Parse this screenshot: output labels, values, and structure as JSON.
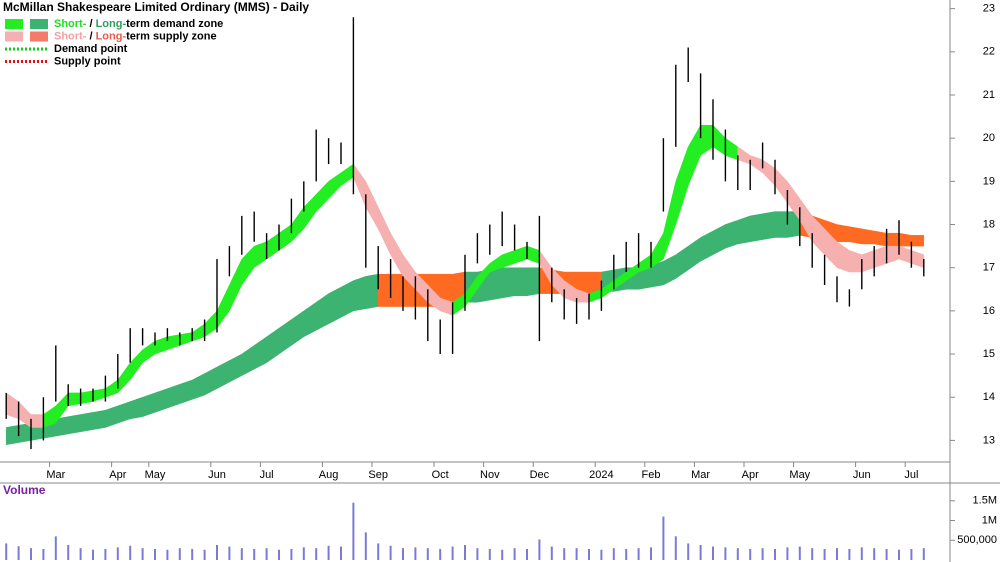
{
  "chart_data": [
    {
      "type": "range",
      "title": "McMillan Shakespeare Limited Ordinary (MMS) - Daily",
      "legend": [
        {
          "swatches": [
            "#22ee22",
            "#3cb371"
          ],
          "parts": [
            {
              "text": "Short-",
              "color": "#22dd22"
            },
            {
              "text": " / ",
              "color": "#000000"
            },
            {
              "text": "Long-",
              "color": "#2e9e5e"
            },
            {
              "text": "term demand zone",
              "color": "#000000"
            }
          ]
        },
        {
          "swatches": [
            "#f6b0b0",
            "#f47a6a"
          ],
          "parts": [
            {
              "text": "Short-",
              "color": "#f4a0a0"
            },
            {
              "text": " / ",
              "color": "#000000"
            },
            {
              "text": "Long-",
              "color": "#ee5a4a"
            },
            {
              "text": "term supply zone",
              "color": "#000000"
            }
          ]
        },
        {
          "line": "#11cc11",
          "parts": [
            {
              "text": "Demand point",
              "color": "#000000"
            }
          ]
        },
        {
          "line": "#dd1111",
          "parts": [
            {
              "text": "Supply point",
              "color": "#000000"
            }
          ]
        }
      ],
      "categories": [
        null,
        null,
        null,
        null,
        "Mar",
        null,
        null,
        null,
        null,
        "Apr",
        null,
        null,
        "May",
        null,
        null,
        null,
        null,
        "Jun",
        null,
        null,
        null,
        "Jul",
        null,
        null,
        null,
        null,
        "Aug",
        null,
        null,
        null,
        "Sep",
        null,
        null,
        null,
        null,
        "Oct",
        null,
        null,
        null,
        "Nov",
        null,
        null,
        null,
        "Dec",
        null,
        null,
        null,
        null,
        "2024",
        null,
        null,
        null,
        "Feb",
        null,
        null,
        null,
        "Mar",
        null,
        null,
        null,
        "Apr",
        null,
        null,
        null,
        "May",
        null,
        null,
        null,
        null,
        "Jun",
        null,
        null,
        null,
        "Jul",
        null
      ],
      "high": [
        14.1,
        13.9,
        13.5,
        14.0,
        15.2,
        14.3,
        14.2,
        14.2,
        14.5,
        15.0,
        15.6,
        15.6,
        15.5,
        15.6,
        15.5,
        15.6,
        15.8,
        17.2,
        17.5,
        18.2,
        18.3,
        17.8,
        18.0,
        18.6,
        19.0,
        20.2,
        20.0,
        19.9,
        22.8,
        18.7,
        17.5,
        17.2,
        16.8,
        16.8,
        16.5,
        15.8,
        16.2,
        17.3,
        17.8,
        18.0,
        18.3,
        18.0,
        17.6,
        18.2,
        17.0,
        16.5,
        16.3,
        16.4,
        16.7,
        17.3,
        17.6,
        17.8,
        17.6,
        20.0,
        21.7,
        22.1,
        21.5,
        20.9,
        20.2,
        19.6,
        19.5,
        19.9,
        19.5,
        18.8,
        18.4,
        17.8,
        17.3,
        16.8,
        16.5,
        17.2,
        17.5,
        17.9,
        18.1,
        17.6,
        17.2
      ],
      "low": [
        13.5,
        13.1,
        12.8,
        13.0,
        13.9,
        13.8,
        13.8,
        13.9,
        13.9,
        14.2,
        14.8,
        15.2,
        15.2,
        15.3,
        15.2,
        15.3,
        15.3,
        15.5,
        16.8,
        17.3,
        17.6,
        17.2,
        17.4,
        17.8,
        18.3,
        19.0,
        19.4,
        19.4,
        18.7,
        17.0,
        16.5,
        16.3,
        16.0,
        15.8,
        15.3,
        15.0,
        15.0,
        16.0,
        17.1,
        17.3,
        17.5,
        17.4,
        17.2,
        15.3,
        16.2,
        15.8,
        15.7,
        15.8,
        16.0,
        16.5,
        16.9,
        17.0,
        17.0,
        18.3,
        19.8,
        21.3,
        20.0,
        19.5,
        19.0,
        18.8,
        18.8,
        19.3,
        18.7,
        18.0,
        17.5,
        17.0,
        16.6,
        16.2,
        16.1,
        16.5,
        16.8,
        17.1,
        17.3,
        17.0,
        16.8
      ],
      "bar_color": "#000000",
      "zones": [
        {
          "color": "#3cb371",
          "upper": [
            13.3,
            13.35,
            13.4,
            13.45,
            13.5,
            13.55,
            13.6,
            13.65,
            13.7,
            13.8,
            13.9,
            14.0,
            14.1,
            14.2,
            14.3,
            14.4,
            14.55,
            14.7,
            14.85,
            15.0,
            15.2,
            15.4,
            15.6,
            15.8,
            16.0,
            16.2,
            16.4,
            16.55,
            16.7,
            16.8,
            16.85,
            null,
            null,
            null,
            null,
            null,
            null,
            16.9,
            16.9,
            16.95,
            17.0,
            17.0,
            17.0,
            17.0,
            null,
            null,
            null,
            null,
            16.9,
            16.95,
            17.0,
            17.0,
            17.05,
            17.15,
            17.3,
            17.5,
            17.7,
            17.85,
            18.0,
            18.1,
            18.2,
            18.25,
            18.3,
            18.3,
            18.3,
            null,
            null,
            null,
            null,
            null,
            null,
            null,
            null,
            null,
            null
          ],
          "lower": [
            12.9,
            12.95,
            13.0,
            13.05,
            13.1,
            13.15,
            13.2,
            13.25,
            13.3,
            13.4,
            13.5,
            13.55,
            13.65,
            13.75,
            13.85,
            13.95,
            14.05,
            14.2,
            14.35,
            14.5,
            14.65,
            14.8,
            15.0,
            15.2,
            15.4,
            15.55,
            15.7,
            15.85,
            16.0,
            16.05,
            16.1,
            null,
            null,
            null,
            null,
            null,
            null,
            16.2,
            16.2,
            16.25,
            16.3,
            16.35,
            16.35,
            16.4,
            null,
            null,
            null,
            null,
            16.45,
            16.45,
            16.5,
            16.5,
            16.55,
            16.6,
            16.75,
            16.95,
            17.15,
            17.3,
            17.45,
            17.55,
            17.6,
            17.65,
            17.7,
            17.7,
            17.75,
            null,
            null,
            null,
            null,
            null,
            null,
            null,
            null,
            null,
            null
          ]
        },
        {
          "color": "#ff6a22",
          "upper": [
            null,
            null,
            null,
            null,
            null,
            null,
            null,
            null,
            null,
            null,
            null,
            null,
            null,
            null,
            null,
            null,
            null,
            null,
            null,
            null,
            null,
            null,
            null,
            null,
            null,
            null,
            null,
            null,
            null,
            null,
            16.85,
            16.85,
            16.85,
            16.85,
            16.85,
            16.85,
            16.85,
            16.9,
            null,
            null,
            null,
            null,
            null,
            17.0,
            16.95,
            16.9,
            16.9,
            16.9,
            16.9,
            null,
            null,
            null,
            null,
            null,
            null,
            null,
            null,
            null,
            null,
            null,
            null,
            null,
            null,
            null,
            18.3,
            18.2,
            18.1,
            18.0,
            17.95,
            17.9,
            17.85,
            17.8,
            17.8,
            17.75,
            17.75
          ],
          "lower": [
            null,
            null,
            null,
            null,
            null,
            null,
            null,
            null,
            null,
            null,
            null,
            null,
            null,
            null,
            null,
            null,
            null,
            null,
            null,
            null,
            null,
            null,
            null,
            null,
            null,
            null,
            null,
            null,
            null,
            null,
            16.1,
            16.1,
            16.1,
            16.1,
            16.1,
            16.1,
            16.1,
            16.2,
            null,
            null,
            null,
            null,
            null,
            16.4,
            16.4,
            16.4,
            16.4,
            16.4,
            16.45,
            null,
            null,
            null,
            null,
            null,
            null,
            null,
            null,
            null,
            null,
            null,
            null,
            null,
            null,
            null,
            17.75,
            17.7,
            17.65,
            17.6,
            17.6,
            17.55,
            17.55,
            17.5,
            17.5,
            17.5,
            17.5
          ]
        },
        {
          "color": "#22ee22",
          "upper": [
            null,
            null,
            null,
            13.6,
            13.8,
            14.1,
            14.1,
            14.15,
            14.2,
            14.4,
            14.8,
            15.1,
            15.3,
            15.4,
            15.45,
            15.5,
            15.7,
            16.0,
            16.6,
            17.2,
            17.5,
            17.6,
            17.8,
            18.0,
            18.4,
            18.7,
            19.0,
            19.2,
            19.4,
            null,
            null,
            null,
            null,
            null,
            null,
            null,
            16.2,
            16.4,
            16.8,
            17.1,
            17.3,
            17.4,
            17.5,
            17.4,
            null,
            null,
            null,
            16.4,
            16.5,
            16.7,
            16.9,
            17.1,
            17.3,
            17.8,
            19.0,
            19.8,
            20.3,
            20.3,
            20.0,
            19.8,
            null,
            null,
            null,
            null,
            null,
            null,
            null,
            null,
            null,
            null,
            null,
            null,
            null,
            null,
            null
          ],
          "lower": [
            null,
            null,
            null,
            13.3,
            13.4,
            13.8,
            13.85,
            13.9,
            14.0,
            14.1,
            14.4,
            14.8,
            15.0,
            15.1,
            15.2,
            15.3,
            15.4,
            15.6,
            16.0,
            16.6,
            17.0,
            17.2,
            17.4,
            17.6,
            17.9,
            18.3,
            18.6,
            18.9,
            19.1,
            null,
            null,
            null,
            null,
            null,
            null,
            null,
            15.9,
            16.1,
            16.5,
            16.9,
            17.0,
            17.1,
            17.2,
            17.1,
            null,
            null,
            null,
            16.2,
            16.3,
            16.5,
            16.7,
            16.9,
            17.0,
            17.2,
            18.0,
            18.9,
            19.6,
            19.8,
            19.6,
            19.5,
            null,
            null,
            null,
            null,
            null,
            null,
            null,
            null,
            null,
            null,
            null,
            null,
            null,
            null,
            null
          ]
        },
        {
          "color": "#f6b0b0",
          "upper": [
            14.1,
            13.9,
            13.6,
            13.6,
            null,
            null,
            null,
            null,
            null,
            null,
            null,
            null,
            null,
            null,
            null,
            null,
            null,
            null,
            null,
            null,
            null,
            null,
            null,
            null,
            null,
            null,
            null,
            null,
            19.4,
            19.0,
            18.4,
            17.8,
            17.3,
            16.9,
            16.6,
            16.3,
            16.2,
            null,
            null,
            null,
            null,
            null,
            null,
            17.4,
            17.0,
            16.7,
            16.5,
            16.4,
            null,
            null,
            null,
            null,
            null,
            null,
            null,
            null,
            null,
            null,
            null,
            19.8,
            19.6,
            19.5,
            19.3,
            19.0,
            18.6,
            18.2,
            17.9,
            17.6,
            17.4,
            17.3,
            17.4,
            17.5,
            17.5,
            17.4,
            17.3
          ],
          "lower": [
            13.6,
            13.5,
            13.3,
            13.3,
            null,
            null,
            null,
            null,
            null,
            null,
            null,
            null,
            null,
            null,
            null,
            null,
            null,
            null,
            null,
            null,
            null,
            null,
            null,
            null,
            null,
            null,
            null,
            null,
            19.1,
            18.4,
            17.9,
            17.3,
            16.8,
            16.5,
            16.2,
            16.0,
            15.9,
            null,
            null,
            null,
            null,
            null,
            null,
            17.1,
            16.6,
            16.3,
            16.2,
            16.2,
            null,
            null,
            null,
            null,
            null,
            null,
            null,
            null,
            null,
            null,
            null,
            19.5,
            19.4,
            19.2,
            18.9,
            18.5,
            18.1,
            17.6,
            17.3,
            17.0,
            16.9,
            16.9,
            17.0,
            17.1,
            17.2,
            17.1,
            17.0
          ]
        }
      ],
      "ylim": [
        12.5,
        23.2
      ],
      "yticks": [
        13,
        14,
        15,
        16,
        17,
        18,
        19,
        20,
        21,
        22,
        23
      ]
    },
    {
      "type": "volume",
      "title": "Volume",
      "title_color": "#7a1fa2",
      "color": "#7b7bd6",
      "values": [
        420000,
        350000,
        300000,
        280000,
        600000,
        380000,
        300000,
        260000,
        280000,
        320000,
        360000,
        300000,
        280000,
        260000,
        300000,
        280000,
        260000,
        380000,
        340000,
        300000,
        280000,
        300000,
        260000,
        280000,
        320000,
        300000,
        360000,
        340000,
        1450000,
        700000,
        420000,
        360000,
        300000,
        320000,
        300000,
        280000,
        340000,
        380000,
        300000,
        280000,
        260000,
        300000,
        280000,
        520000,
        340000,
        300000,
        300000,
        280000,
        260000,
        300000,
        280000,
        300000,
        320000,
        1100000,
        600000,
        420000,
        380000,
        340000,
        320000,
        300000,
        280000,
        300000,
        280000,
        320000,
        340000,
        300000,
        280000,
        300000,
        280000,
        320000,
        300000,
        280000,
        260000,
        280000,
        300000
      ],
      "ylim": [
        0,
        1950000
      ],
      "yticks": [
        {
          "value": 500000,
          "label": "500,000"
        },
        {
          "value": 1000000,
          "label": "1M"
        },
        {
          "value": 1500000,
          "label": "1.5M"
        }
      ]
    }
  ]
}
